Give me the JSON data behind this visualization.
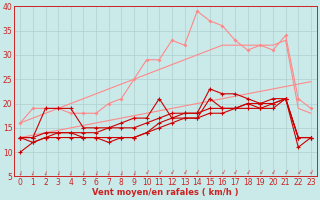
{
  "title": "",
  "xlabel": "Vent moyen/en rafales ( km/h )",
  "ylabel": "",
  "bg_color": "#caeaea",
  "grid_color": "#b0d0d0",
  "x": [
    0,
    1,
    2,
    3,
    4,
    5,
    6,
    7,
    8,
    9,
    10,
    11,
    12,
    13,
    14,
    15,
    16,
    17,
    18,
    19,
    20,
    21,
    22,
    23
  ],
  "line_jagged_light": [
    16,
    19,
    19,
    19,
    18,
    18,
    18,
    20,
    21,
    25,
    29,
    29,
    33,
    32,
    39,
    37,
    36,
    33,
    31,
    32,
    31,
    34,
    21,
    19
  ],
  "line_upper_straight": [
    16,
    17,
    18,
    19,
    20,
    21,
    22,
    23,
    24,
    25,
    26,
    27,
    28,
    29,
    30,
    31,
    32,
    32,
    32,
    32,
    32,
    33,
    19,
    18
  ],
  "line_lower_straight": [
    13,
    13.5,
    14,
    14.5,
    15,
    15.5,
    16,
    16.5,
    17,
    17.5,
    18,
    18.5,
    19,
    19.5,
    20,
    20.5,
    21,
    21.5,
    22,
    22.5,
    23,
    23.5,
    24,
    24.5
  ],
  "line_dark1": [
    10,
    12,
    13,
    13,
    13,
    13,
    13,
    13,
    13,
    13,
    14,
    15,
    16,
    17,
    17,
    18,
    18,
    19,
    19,
    19,
    20,
    21,
    13,
    13
  ],
  "line_dark2": [
    13,
    12,
    13,
    14,
    14,
    13,
    13,
    12,
    13,
    13,
    14,
    16,
    17,
    17,
    17,
    21,
    19,
    19,
    20,
    19,
    19,
    21,
    11,
    13
  ],
  "line_dark3": [
    13,
    13,
    19,
    19,
    19,
    15,
    15,
    15,
    16,
    17,
    17,
    21,
    17,
    18,
    18,
    23,
    22,
    22,
    21,
    20,
    21,
    21,
    13,
    13
  ],
  "line_dark4": [
    13,
    13,
    14,
    14,
    14,
    14,
    14,
    15,
    15,
    15,
    16,
    17,
    18,
    18,
    18,
    19,
    19,
    19,
    20,
    20,
    20,
    21,
    13,
    13
  ],
  "arrow_color": "#cc2222",
  "line_color_dark": "#cc0000",
  "line_color_light": "#ff8888"
}
